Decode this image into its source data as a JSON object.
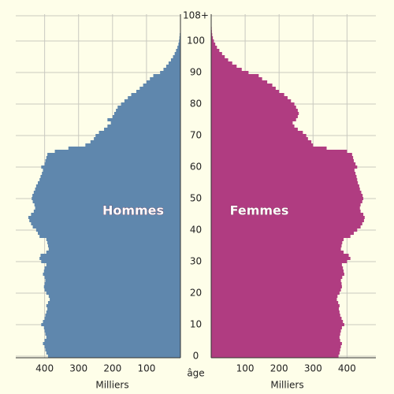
{
  "chart_data": {
    "type": "pyramid",
    "y_label": "âge",
    "x_label": "Milliers",
    "categories": [
      0,
      null,
      null,
      null,
      null,
      null,
      null,
      null,
      null,
      null,
      10,
      null,
      null,
      null,
      null,
      null,
      null,
      null,
      null,
      null,
      20,
      null,
      null,
      null,
      null,
      null,
      null,
      null,
      null,
      null,
      30,
      null,
      null,
      null,
      null,
      null,
      null,
      null,
      null,
      null,
      40,
      null,
      null,
      null,
      null,
      null,
      null,
      null,
      null,
      null,
      50,
      null,
      null,
      null,
      null,
      null,
      null,
      null,
      null,
      null,
      60,
      null,
      null,
      null,
      null,
      null,
      null,
      null,
      null,
      null,
      70,
      null,
      null,
      null,
      null,
      null,
      null,
      null,
      null,
      null,
      80,
      null,
      null,
      null,
      null,
      null,
      null,
      null,
      null,
      null,
      90,
      null,
      null,
      null,
      null,
      null,
      null,
      null,
      null,
      null,
      100,
      null,
      null,
      null,
      null,
      null,
      null,
      null,
      "108+"
    ],
    "series": [
      {
        "name": "Hommes",
        "color": "#5f87ad",
        "values": [
          390,
          395,
          398,
          400,
          405,
          400,
          395,
          398,
          400,
          402,
          410,
          405,
          400,
          398,
          395,
          392,
          395,
          390,
          385,
          388,
          395,
          400,
          402,
          400,
          398,
          400,
          405,
          402,
          400,
          395,
          410,
          415,
          412,
          395,
          388,
          390,
          392,
          395,
          415,
          420,
          425,
          435,
          440,
          445,
          448,
          440,
          432,
          428,
          430,
          435,
          438,
          436,
          432,
          428,
          425,
          420,
          415,
          412,
          408,
          405,
          410,
          400,
          398,
          395,
          392,
          370,
          330,
          280,
          265,
          255,
          250,
          240,
          225,
          215,
          205,
          215,
          200,
          195,
          190,
          185,
          175,
          165,
          155,
          145,
          130,
          120,
          110,
          100,
          90,
          80,
          60,
          50,
          42,
          35,
          28,
          22,
          17,
          13,
          9,
          6,
          4,
          3,
          2,
          1,
          1,
          0.5,
          0.3,
          0.2,
          0.2
        ]
      },
      {
        "name": "Femmes",
        "color": "#b03c81",
        "values": [
          375,
          378,
          380,
          382,
          385,
          380,
          378,
          380,
          382,
          385,
          392,
          388,
          384,
          380,
          378,
          376,
          378,
          374,
          370,
          372,
          378,
          382,
          385,
          384,
          382,
          386,
          392,
          390,
          388,
          385,
          400,
          410,
          405,
          390,
          382,
          384,
          386,
          390,
          410,
          420,
          430,
          440,
          445,
          450,
          452,
          448,
          440,
          438,
          440,
          445,
          448,
          446,
          442,
          438,
          436,
          432,
          430,
          428,
          425,
          422,
          430,
          425,
          420,
          418,
          415,
          400,
          340,
          300,
          295,
          285,
          280,
          270,
          255,
          245,
          240,
          250,
          255,
          258,
          255,
          250,
          245,
          235,
          225,
          215,
          200,
          190,
          180,
          165,
          150,
          140,
          110,
          90,
          75,
          62,
          50,
          40,
          32,
          24,
          17,
          12,
          8,
          5,
          3,
          2,
          1.5,
          1,
          0.6,
          0.4,
          0.5
        ]
      }
    ],
    "xlim": [
      0,
      485
    ],
    "xticks": [
      100,
      200,
      300,
      400
    ],
    "grid": true
  }
}
